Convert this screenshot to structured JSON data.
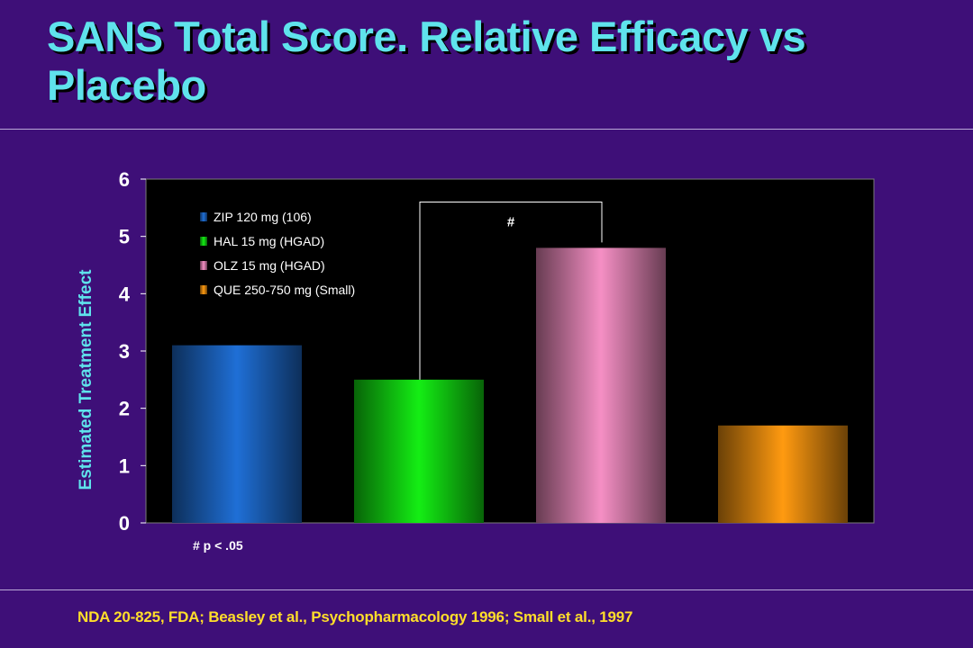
{
  "slide": {
    "title": "SANS Total Score. Relative Efficacy vs Placebo",
    "footnote": "# p < .05",
    "citation": "NDA 20-825, FDA; Beasley et al., Psychopharmacology 1996; Small et al., 1997"
  },
  "colors": {
    "background": "#3e0f78",
    "title": "#5fe3ec",
    "citation": "#ffde2a",
    "plot_background": "#000000"
  },
  "chart_data": {
    "type": "bar",
    "title": "",
    "xlabel": "",
    "ylabel": "Estimated Treatment Effect",
    "ylim": [
      0,
      6
    ],
    "yticks": [
      0,
      1,
      2,
      3,
      4,
      5,
      6
    ],
    "grid": false,
    "legend_position": "top-left",
    "series": [
      {
        "name": "ZIP 120 mg (106)",
        "value": 3.1,
        "color": "#1f6fd6"
      },
      {
        "name": "HAL 15 mg (HGAD)",
        "value": 2.5,
        "color": "#14ee14"
      },
      {
        "name": "OLZ 15 mg (HGAD)",
        "value": 4.8,
        "color": "#f58fc4"
      },
      {
        "name": "QUE 250-750 mg (Small)",
        "value": 1.7,
        "color": "#ff9a10"
      }
    ],
    "annotations": [
      {
        "text": "#",
        "from_series": "HAL 15 mg (HGAD)",
        "to_series": "OLZ 15 mg (HGAD)"
      }
    ]
  }
}
